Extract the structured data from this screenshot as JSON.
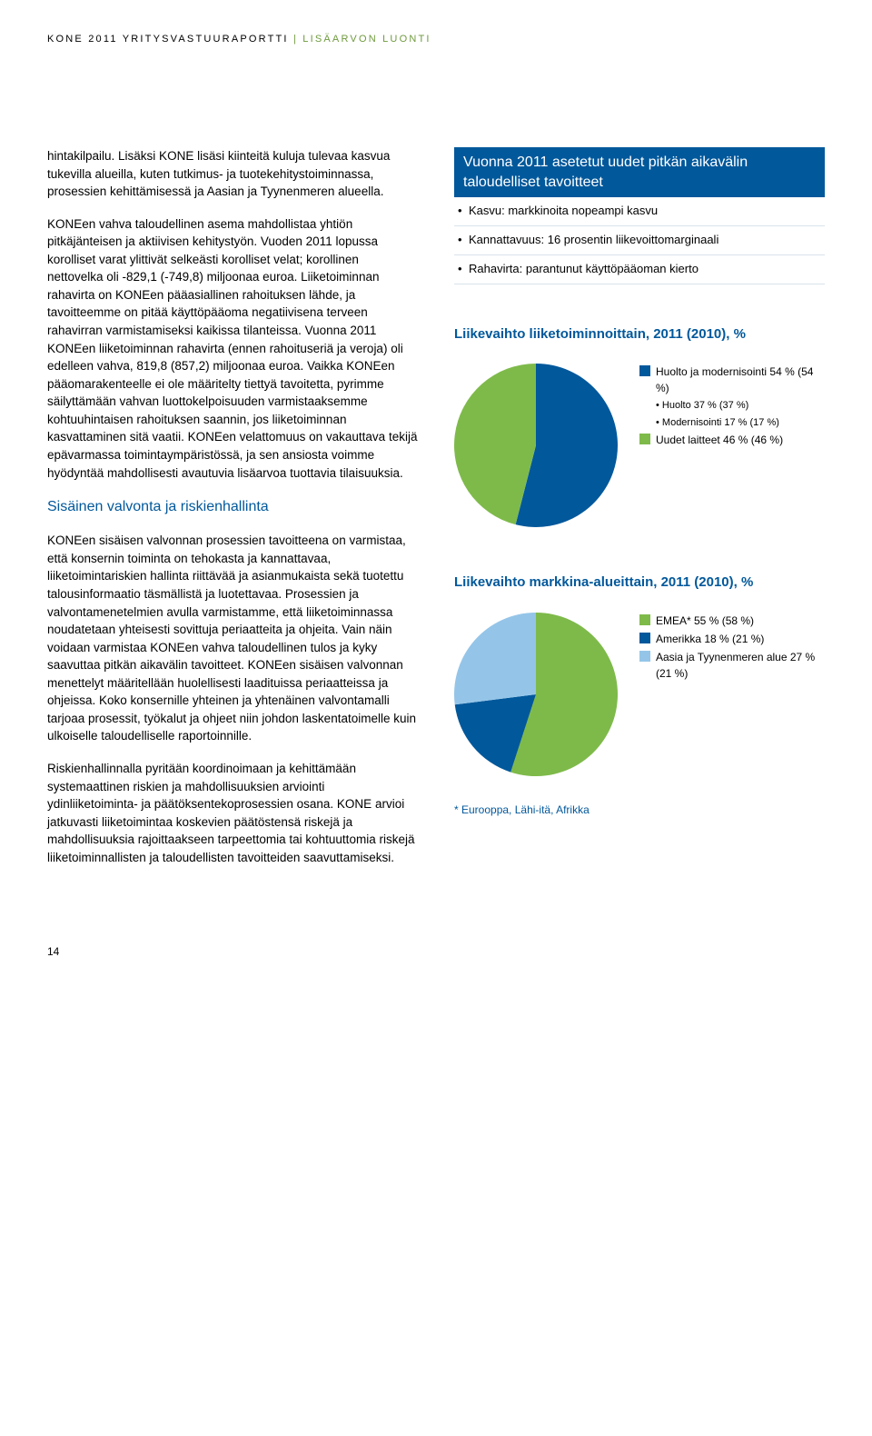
{
  "header": {
    "main": "KONE 2011 YRITYSVASTUURAPORTTI",
    "accent": "LISÄARVON LUONTI"
  },
  "left": {
    "para1": "hintakilpailu. Lisäksi KONE lisäsi kiinteitä kuluja tulevaa kasvua tukevilla alueilla, kuten tutkimus- ja tuotekehitystoiminnassa, prosessien kehittämisessä ja Aasian ja Tyynenmeren alueella.",
    "para2": "KONEen vahva taloudellinen asema mahdollistaa yhtiön pitkäjänteisen ja aktiivisen kehitystyön. Vuoden 2011 lopussa korolliset varat ylittivät selkeästi korolliset velat; korollinen nettovelka oli -829,1 (-749,8) miljoonaa euroa. Liiketoiminnan rahavirta on KONEen pääasiallinen rahoituksen lähde, ja tavoitteemme on pitää käyttöpääoma negatiivisena terveen rahavirran varmistamiseksi kaikissa tilanteissa. Vuonna 2011 KONEen liiketoiminnan rahavirta (ennen rahoituseriä ja veroja) oli edelleen vahva, 819,8 (857,2) miljoonaa euroa. Vaikka KONEen pääomarakenteelle ei ole määritelty tiettyä tavoitetta, pyrimme säilyttämään vahvan luottokelpoisuuden varmistaaksemme kohtuuhintaisen rahoituksen saannin, jos liiketoiminnan kasvattaminen sitä vaatii. KONEen velattomuus on vakauttava tekijä epävarmassa toimintaympäristössä, ja sen ansiosta voimme hyödyntää mahdollisesti avautuvia lisäarvoa tuottavia tilaisuuksia.",
    "subhead1": "Sisäinen valvonta ja riskienhallinta",
    "para3": "KONEen sisäisen valvonnan prosessien tavoitteena on varmistaa, että konsernin toiminta on tehokasta ja kannattavaa, liiketoimintariskien hallinta riittävää ja asianmukaista sekä tuotettu talousinformaatio täsmällistä ja luotettavaa. Prosessien ja valvontamenetelmien avulla varmistamme, että liiketoiminnassa noudatetaan yhteisesti sovittuja periaatteita ja ohjeita. Vain näin voidaan varmistaa KONEen vahva taloudellinen tulos ja kyky saavuttaa pitkän aikavälin tavoitteet. KONEen sisäisen valvonnan menettelyt määritellään huolellisesti laadituissa periaatteissa ja ohjeissa. Koko konsernille yhteinen ja yhtenäinen valvontamalli tarjoaa prosessit, työkalut ja ohjeet niin johdon laskentatoimelle kuin ulkoiselle taloudelliselle raportoinnille.",
    "para4": "Riskienhallinnalla pyritään koordinoimaan ja kehittämään systemaattinen riskien ja mahdollisuuksien arviointi ydinliiketoiminta- ja päätöksentekoprosessien osana. KONE arvioi jatkuvasti liiketoimintaa koskevien päätöstensä riskejä ja mahdollisuuksia rajoittaakseen tarpeettomia tai kohtuuttomia riskejä liiketoiminnallisten ja taloudellisten tavoitteiden saavuttamiseksi."
  },
  "right": {
    "goals_title": "Vuonna 2011 asetetut uudet pitkän aikavälin taloudelliset tavoitteet",
    "goals": [
      "Kasvu: markkinoita nopeampi kasvu",
      "Kannattavuus: 16 prosentin liikevoittomarginaali",
      "Rahavirta: parantunut käyttöpääoman kierto"
    ],
    "chart1": {
      "title": "Liikevaihto liiketoiminnoittain, 2011 (2010), %",
      "type": "pie",
      "radius": 90,
      "background": "#ffffff",
      "slices": [
        {
          "label": "Huolto ja modernisointi 54 % (54 %)",
          "value": 54,
          "color": "#01589b",
          "sub": [
            "• Huolto 37 % (37 %)",
            "• Modernisointi 17 % (17 %)"
          ]
        },
        {
          "label": "Uudet laitteet 46 % (46 %)",
          "value": 46,
          "color": "#7eba4a"
        }
      ]
    },
    "chart2": {
      "title": "Liikevaihto markkina-alueittain, 2011 (2010), %",
      "type": "pie",
      "radius": 90,
      "background": "#ffffff",
      "slices": [
        {
          "label": "EMEA* 55 % (58 %)",
          "value": 55,
          "color": "#7eba4a"
        },
        {
          "label": "Amerikka 18 % (21 %)",
          "value": 18,
          "color": "#01589b"
        },
        {
          "label": "Aasia ja Tyynenmeren alue 27 % (21 %)",
          "value": 27,
          "color": "#94c5e8"
        }
      ]
    },
    "footnote": "* Eurooppa, Lähi-itä, Afrikka"
  },
  "page_number": "14"
}
